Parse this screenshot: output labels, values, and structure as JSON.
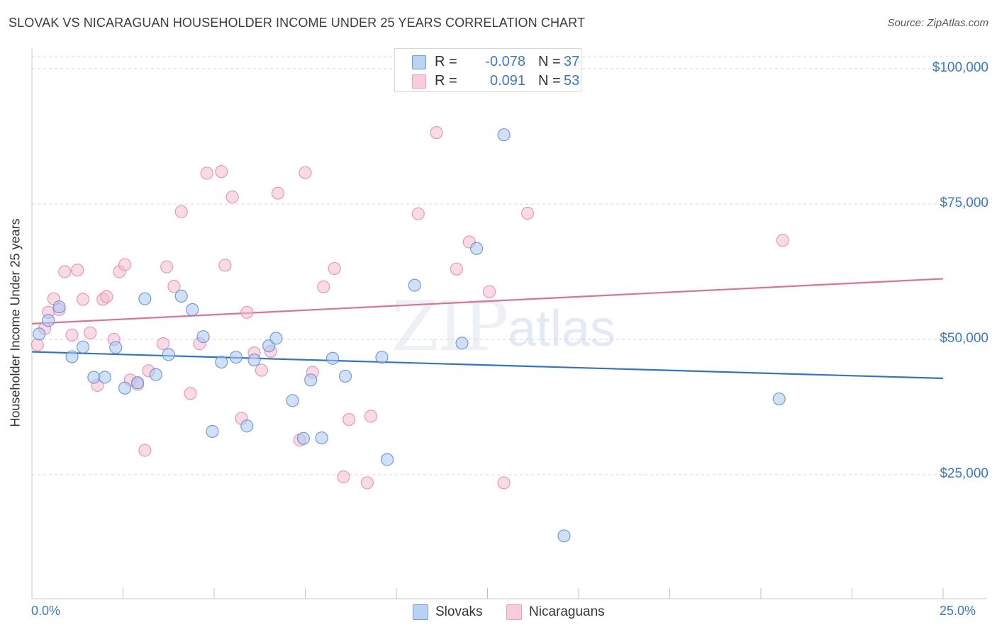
{
  "header": {
    "title": "SLOVAK VS NICARAGUAN HOUSEHOLDER INCOME UNDER 25 YEARS CORRELATION CHART",
    "source": "Source: ZipAtlas.com"
  },
  "watermark": {
    "zip": "ZIP",
    "atlas": "atlas"
  },
  "legend": {
    "slovaks": {
      "r_label": "R =",
      "r_value": "-0.078",
      "n_label": "N =",
      "n_value": "37"
    },
    "nicaraguans": {
      "r_label": "R =",
      "r_value": "0.091",
      "n_label": "N =",
      "n_value": "53"
    }
  },
  "bottom_legend": {
    "slovaks": "Slovaks",
    "nicaraguans": "Nicaraguans"
  },
  "colors": {
    "slovak_fill": "#a9c8f0",
    "slovak_stroke": "#5a8fd6",
    "slovak_line": "#2f74cc",
    "nic_fill": "#f6bcd0",
    "nic_stroke": "#e58aa8",
    "nic_line": "#e0709a",
    "axis_text": "#3a78d0",
    "grid": "#d6d6d6"
  },
  "chart_data": {
    "type": "scatter",
    "title": "SLOVAK VS NICARAGUAN HOUSEHOLDER INCOME UNDER 25 YEARS CORRELATION CHART",
    "xlabel": "",
    "ylabel": "Householder Income Under 25 years",
    "xlim": [
      0,
      25
    ],
    "ylim": [
      0,
      100000
    ],
    "x_tick_labels": {
      "min": "0.0%",
      "max": "25.0%"
    },
    "y_ticks": [
      {
        "value": 100000,
        "label": "$100,000"
      },
      {
        "value": 75000,
        "label": "$75,000"
      },
      {
        "value": 50000,
        "label": "$50,000"
      },
      {
        "value": 25000,
        "label": "$25,000"
      }
    ],
    "series": [
      {
        "name": "Slovaks",
        "r": -0.078,
        "n": 37,
        "trend": {
          "x": [
            0,
            25
          ],
          "y": [
            47700,
            42800
          ]
        },
        "points": [
          {
            "x": 0.2,
            "y": 51000
          },
          {
            "x": 0.45,
            "y": 53500
          },
          {
            "x": 0.75,
            "y": 56000
          },
          {
            "x": 1.1,
            "y": 46800
          },
          {
            "x": 1.4,
            "y": 48600
          },
          {
            "x": 1.7,
            "y": 43000
          },
          {
            "x": 2.0,
            "y": 43000
          },
          {
            "x": 2.3,
            "y": 48500
          },
          {
            "x": 2.55,
            "y": 41000
          },
          {
            "x": 2.9,
            "y": 42000
          },
          {
            "x": 3.1,
            "y": 57500
          },
          {
            "x": 3.4,
            "y": 43500
          },
          {
            "x": 3.75,
            "y": 47200
          },
          {
            "x": 4.1,
            "y": 58000
          },
          {
            "x": 4.4,
            "y": 55500
          },
          {
            "x": 4.7,
            "y": 50500
          },
          {
            "x": 4.95,
            "y": 33000
          },
          {
            "x": 5.2,
            "y": 45800
          },
          {
            "x": 5.6,
            "y": 46700
          },
          {
            "x": 5.9,
            "y": 34000
          },
          {
            "x": 6.1,
            "y": 46200
          },
          {
            "x": 6.5,
            "y": 48800
          },
          {
            "x": 6.7,
            "y": 50200
          },
          {
            "x": 7.15,
            "y": 38700
          },
          {
            "x": 7.45,
            "y": 31700
          },
          {
            "x": 7.65,
            "y": 42500
          },
          {
            "x": 7.95,
            "y": 31800
          },
          {
            "x": 8.25,
            "y": 46500
          },
          {
            "x": 8.6,
            "y": 43200
          },
          {
            "x": 9.6,
            "y": 46700
          },
          {
            "x": 9.75,
            "y": 27800
          },
          {
            "x": 10.5,
            "y": 60000
          },
          {
            "x": 11.8,
            "y": 49300
          },
          {
            "x": 12.2,
            "y": 66800
          },
          {
            "x": 12.95,
            "y": 87800
          },
          {
            "x": 14.6,
            "y": 13700
          },
          {
            "x": 20.5,
            "y": 39000
          }
        ]
      },
      {
        "name": "Nicaraguans",
        "r": 0.091,
        "n": 53,
        "trend": {
          "x": [
            0,
            25
          ],
          "y": [
            52900,
            61200
          ]
        },
        "points": [
          {
            "x": 0.15,
            "y": 49000
          },
          {
            "x": 0.35,
            "y": 52000
          },
          {
            "x": 0.45,
            "y": 55000
          },
          {
            "x": 0.6,
            "y": 57500
          },
          {
            "x": 0.75,
            "y": 55500
          },
          {
            "x": 0.9,
            "y": 62500
          },
          {
            "x": 1.1,
            "y": 50800
          },
          {
            "x": 1.25,
            "y": 62800
          },
          {
            "x": 1.4,
            "y": 57400
          },
          {
            "x": 1.6,
            "y": 51200
          },
          {
            "x": 1.8,
            "y": 41500
          },
          {
            "x": 1.95,
            "y": 57400
          },
          {
            "x": 2.05,
            "y": 57900
          },
          {
            "x": 2.25,
            "y": 50000
          },
          {
            "x": 2.4,
            "y": 62500
          },
          {
            "x": 2.55,
            "y": 63800
          },
          {
            "x": 2.7,
            "y": 42500
          },
          {
            "x": 2.9,
            "y": 41700
          },
          {
            "x": 3.1,
            "y": 29500
          },
          {
            "x": 3.2,
            "y": 44200
          },
          {
            "x": 3.6,
            "y": 49200
          },
          {
            "x": 3.7,
            "y": 63400
          },
          {
            "x": 3.9,
            "y": 59800
          },
          {
            "x": 4.1,
            "y": 73600
          },
          {
            "x": 4.35,
            "y": 40000
          },
          {
            "x": 4.6,
            "y": 49200
          },
          {
            "x": 4.8,
            "y": 80700
          },
          {
            "x": 5.2,
            "y": 81000
          },
          {
            "x": 5.3,
            "y": 63700
          },
          {
            "x": 5.5,
            "y": 76300
          },
          {
            "x": 5.75,
            "y": 35400
          },
          {
            "x": 5.9,
            "y": 55000
          },
          {
            "x": 6.1,
            "y": 47500
          },
          {
            "x": 6.3,
            "y": 44300
          },
          {
            "x": 6.55,
            "y": 47800
          },
          {
            "x": 6.75,
            "y": 77000
          },
          {
            "x": 7.35,
            "y": 31400
          },
          {
            "x": 7.5,
            "y": 80800
          },
          {
            "x": 7.7,
            "y": 43900
          },
          {
            "x": 8.0,
            "y": 59700
          },
          {
            "x": 8.3,
            "y": 63100
          },
          {
            "x": 8.55,
            "y": 24600
          },
          {
            "x": 8.7,
            "y": 35200
          },
          {
            "x": 9.2,
            "y": 23500
          },
          {
            "x": 9.3,
            "y": 35800
          },
          {
            "x": 10.6,
            "y": 73200
          },
          {
            "x": 11.1,
            "y": 88200
          },
          {
            "x": 11.65,
            "y": 63000
          },
          {
            "x": 12.0,
            "y": 68000
          },
          {
            "x": 12.55,
            "y": 58800
          },
          {
            "x": 12.95,
            "y": 23500
          },
          {
            "x": 13.6,
            "y": 73300
          },
          {
            "x": 20.6,
            "y": 68300
          }
        ]
      }
    ]
  }
}
